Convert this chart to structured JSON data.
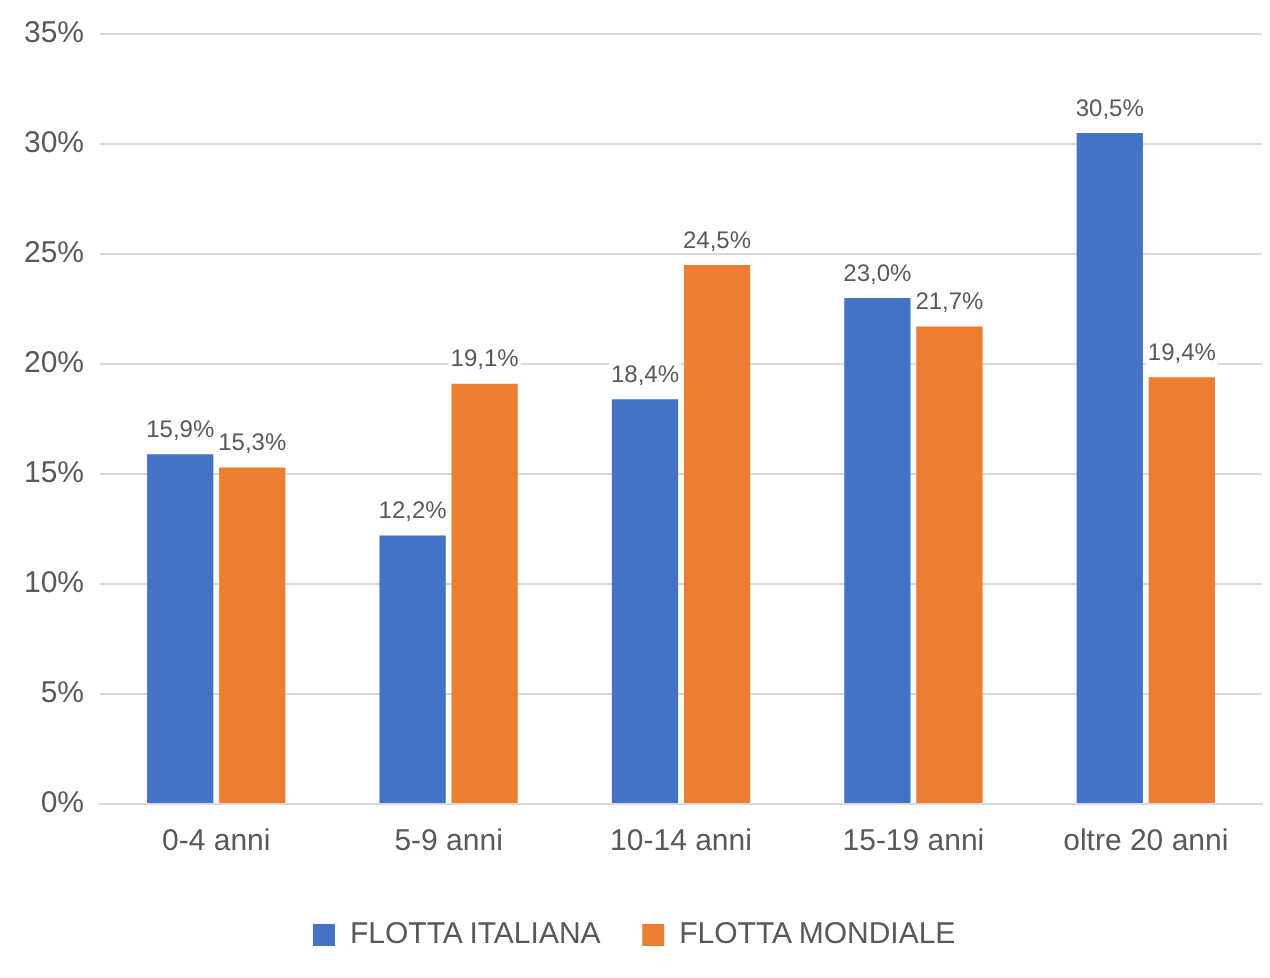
{
  "chart_data": {
    "type": "bar",
    "categories": [
      "0-4 anni",
      "5-9 anni",
      "10-14 anni",
      "15-19 anni",
      "oltre 20 anni"
    ],
    "series": [
      {
        "name": "FLOTTA ITALIANA",
        "color": "#4472c4",
        "values": [
          15.9,
          12.2,
          18.4,
          23.0,
          30.5
        ],
        "value_labels": [
          "15,9%",
          "12,2%",
          "18,4%",
          "23,0%",
          "30,5%"
        ]
      },
      {
        "name": "FLOTTA MONDIALE",
        "color": "#ed7d31",
        "values": [
          15.3,
          19.1,
          24.5,
          21.7,
          19.4
        ],
        "value_labels": [
          "15,3%",
          "19,1%",
          "24,5%",
          "21,7%",
          "19,4%"
        ]
      }
    ],
    "ylim": [
      0,
      35
    ],
    "yticks": [
      {
        "value": 0,
        "label": "0%"
      },
      {
        "value": 5,
        "label": "5%"
      },
      {
        "value": 10,
        "label": "10%"
      },
      {
        "value": 15,
        "label": "15%"
      },
      {
        "value": 20,
        "label": "20%"
      },
      {
        "value": 25,
        "label": "25%"
      },
      {
        "value": 30,
        "label": "30%"
      },
      {
        "value": 35,
        "label": "35%"
      }
    ],
    "grid": "y",
    "legend": "bottom"
  }
}
